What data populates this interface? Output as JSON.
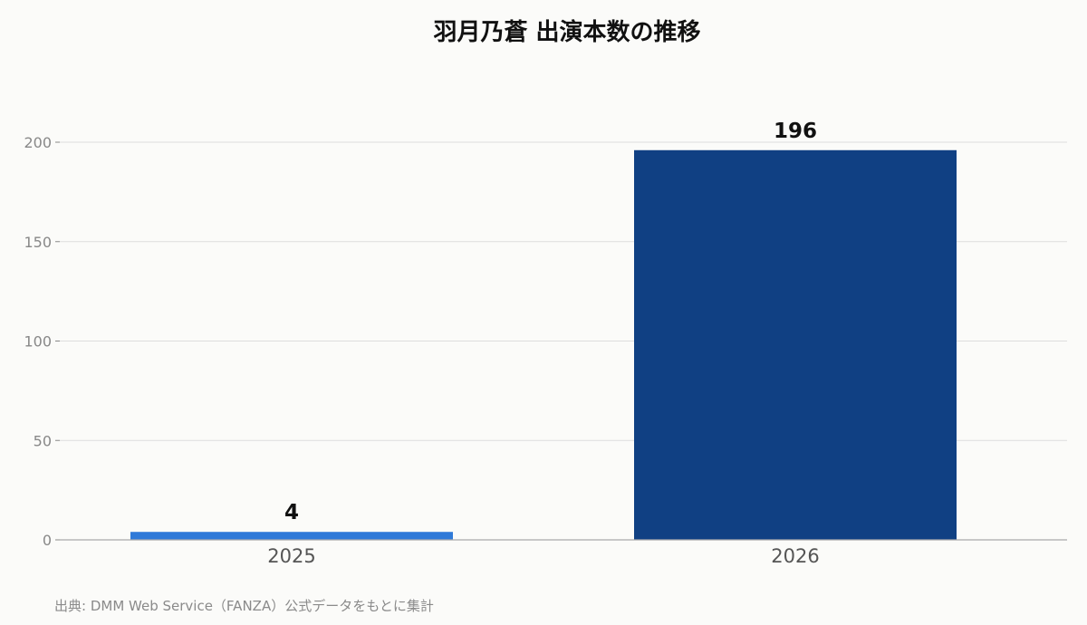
{
  "chart_data": {
    "type": "bar",
    "title": "羽月乃蒼 出演本数の推移",
    "categories": [
      "2025",
      "2026"
    ],
    "values": [
      4,
      196
    ],
    "data_labels": [
      "4",
      "196"
    ],
    "bar_colors": [
      "#2f7ad8",
      "#104083"
    ],
    "ylim": [
      0,
      220
    ],
    "yticks": [
      0,
      50,
      100,
      150,
      200
    ],
    "xlabel": "",
    "ylabel": "",
    "grid": true,
    "legend": "none"
  },
  "source": "出典: DMM Web Service（FANZA）公式データをもとに集計"
}
